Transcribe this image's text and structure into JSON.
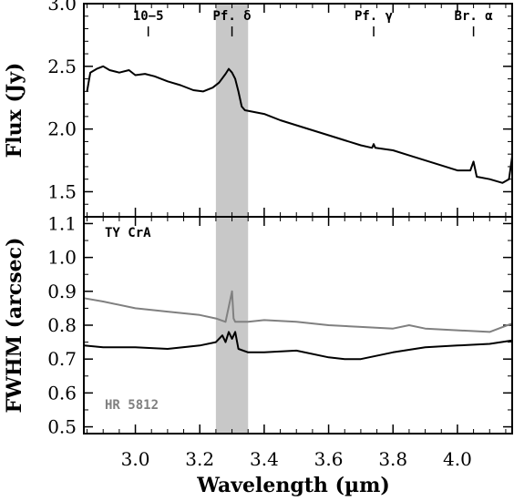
{
  "chart_data": [
    {
      "type": "line",
      "title": "",
      "xlabel": "Wavelength (µm)",
      "ylabel": "Flux (Jy)",
      "xlim": [
        2.84,
        4.17
      ],
      "ylim": [
        1.3,
        3.0
      ],
      "yticks": [
        "1.5",
        "2.0",
        "2.5",
        "3.0"
      ],
      "xticks": [
        "3.0",
        "3.2",
        "3.4",
        "3.6",
        "3.8",
        "4.0"
      ],
      "shaded_band": [
        3.25,
        3.35
      ],
      "line_markers": [
        {
          "label": "10−5",
          "x": 3.04
        },
        {
          "label": "Pf. δ",
          "x": 3.3
        },
        {
          "label": "Pf. γ",
          "x": 3.74
        },
        {
          "label": "Br. α",
          "x": 4.05
        }
      ],
      "series": [
        {
          "color": "#000000",
          "x": [
            2.85,
            2.86,
            2.88,
            2.9,
            2.92,
            2.95,
            2.98,
            3.0,
            3.03,
            3.06,
            3.1,
            3.14,
            3.18,
            3.21,
            3.24,
            3.26,
            3.28,
            3.29,
            3.3,
            3.31,
            3.32,
            3.33,
            3.34,
            3.36,
            3.4,
            3.45,
            3.5,
            3.55,
            3.6,
            3.65,
            3.7,
            3.735,
            3.74,
            3.745,
            3.8,
            3.85,
            3.9,
            3.95,
            4.0,
            4.04,
            4.05,
            4.06,
            4.1,
            4.14,
            4.16,
            4.17
          ],
          "y": [
            2.3,
            2.45,
            2.48,
            2.5,
            2.47,
            2.45,
            2.47,
            2.43,
            2.44,
            2.42,
            2.38,
            2.35,
            2.31,
            2.3,
            2.33,
            2.37,
            2.44,
            2.48,
            2.45,
            2.4,
            2.3,
            2.18,
            2.15,
            2.14,
            2.12,
            2.07,
            2.03,
            1.99,
            1.95,
            1.91,
            1.87,
            1.85,
            1.88,
            1.85,
            1.83,
            1.79,
            1.75,
            1.71,
            1.67,
            1.67,
            1.74,
            1.62,
            1.6,
            1.57,
            1.6,
            1.78
          ]
        }
      ]
    },
    {
      "type": "line",
      "title": "",
      "xlabel": "Wavelength (µm)",
      "ylabel": "FWHM (arcsec)",
      "xlim": [
        2.84,
        4.17
      ],
      "ylim": [
        0.48,
        1.12
      ],
      "yticks": [
        "0.5",
        "0.6",
        "0.7",
        "0.8",
        "0.9",
        "1.0",
        "1.1"
      ],
      "xticks": [
        "3.0",
        "3.2",
        "3.4",
        "3.6",
        "3.8",
        "4.0"
      ],
      "shaded_band": [
        3.25,
        3.35
      ],
      "series": [
        {
          "name": "TY CrA",
          "color": "#000000",
          "x": [
            2.84,
            2.9,
            3.0,
            3.1,
            3.2,
            3.25,
            3.27,
            3.28,
            3.29,
            3.3,
            3.31,
            3.32,
            3.35,
            3.4,
            3.5,
            3.6,
            3.65,
            3.7,
            3.8,
            3.9,
            4.0,
            4.1,
            4.17
          ],
          "y": [
            0.74,
            0.735,
            0.735,
            0.73,
            0.74,
            0.75,
            0.77,
            0.75,
            0.78,
            0.76,
            0.78,
            0.73,
            0.72,
            0.72,
            0.725,
            0.705,
            0.7,
            0.7,
            0.72,
            0.735,
            0.74,
            0.745,
            0.755
          ]
        },
        {
          "name": "HR 5812",
          "color": "#808080",
          "x": [
            2.84,
            2.9,
            3.0,
            3.1,
            3.2,
            3.25,
            3.28,
            3.3,
            3.305,
            3.31,
            3.35,
            3.4,
            3.5,
            3.6,
            3.7,
            3.8,
            3.85,
            3.9,
            4.0,
            4.1,
            4.17
          ],
          "y": [
            0.88,
            0.87,
            0.85,
            0.84,
            0.83,
            0.82,
            0.81,
            0.9,
            0.82,
            0.81,
            0.81,
            0.815,
            0.81,
            0.8,
            0.795,
            0.79,
            0.8,
            0.79,
            0.785,
            0.78,
            0.805
          ]
        }
      ]
    }
  ]
}
